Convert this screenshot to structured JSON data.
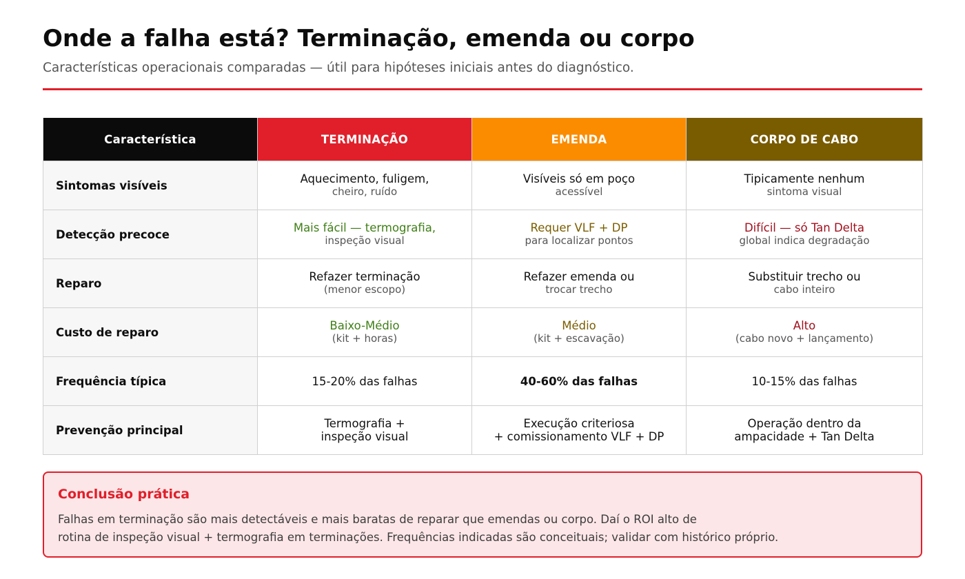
{
  "title": "Onde a falha está? Terminação, emenda ou corpo",
  "subtitle": "Características operacionais comparadas — útil para hipóteses iniciais antes do diagnóstico.",
  "colors": {
    "accent_red": "#e01f2a",
    "header_black": "#0b0b0b",
    "header_red": "#e01f2a",
    "header_orange": "#fb8c00",
    "header_brown": "#795b00",
    "green_text": "#3f7f17",
    "olive_text": "#7a5e00",
    "dark_red_text": "#a1101d",
    "conclusion_bg": "#fde6e8"
  },
  "table": {
    "headers": [
      "Característica",
      "TERMINAÇÃO",
      "EMENDA",
      "CORPO DE CABO"
    ],
    "rows": [
      {
        "label": "Sintomas visíveis",
        "cells": [
          {
            "main": "Aquecimento, fuligem,",
            "sub": "cheiro, ruído"
          },
          {
            "main": "Visíveis só em poço",
            "sub": "acessível"
          },
          {
            "main": "Tipicamente nenhum",
            "sub": "sintoma visual"
          }
        ]
      },
      {
        "label": "Detecção precoce",
        "cells": [
          {
            "main": "Mais fácil — termografia,",
            "sub": "inspeção visual"
          },
          {
            "main": "Requer VLF + DP",
            "sub": "para localizar pontos"
          },
          {
            "main": "Difícil — só Tan Delta",
            "sub": "global indica degradação"
          }
        ]
      },
      {
        "label": "Reparo",
        "cells": [
          {
            "main": "Refazer terminação",
            "sub": "(menor escopo)"
          },
          {
            "main": "Refazer emenda ou",
            "sub": "trocar trecho"
          },
          {
            "main": "Substituir trecho ou",
            "sub": "cabo inteiro"
          }
        ]
      },
      {
        "label": "Custo de reparo",
        "cells": [
          {
            "main": "Baixo-Médio",
            "sub": "(kit + horas)"
          },
          {
            "main": "Médio",
            "sub": "(kit + escavação)"
          },
          {
            "main": "Alto",
            "sub": "(cabo novo + lançamento)"
          }
        ]
      },
      {
        "label": "Frequência típica",
        "cells": [
          {
            "main": "15-20% das falhas"
          },
          {
            "main": "40-60% das falhas"
          },
          {
            "main": "10-15% das falhas"
          }
        ]
      },
      {
        "label": "Prevenção principal",
        "cells": [
          {
            "line1": "Termografia +",
            "line2": "inspeção visual"
          },
          {
            "line1": "Execução criteriosa",
            "line2": "+ comissionamento VLF + DP"
          },
          {
            "line1": "Operação dentro da",
            "line2": "ampacidade + Tan Delta"
          }
        ]
      }
    ]
  },
  "conclusion": {
    "title": "Conclusão prática",
    "line1": "Falhas em terminação são mais detectáveis e mais baratas de reparar que emendas ou corpo. Daí o ROI alto de",
    "line2": "rotina de inspeção visual + termografia em terminações. Frequências indicadas são conceituais; validar com histórico próprio."
  }
}
